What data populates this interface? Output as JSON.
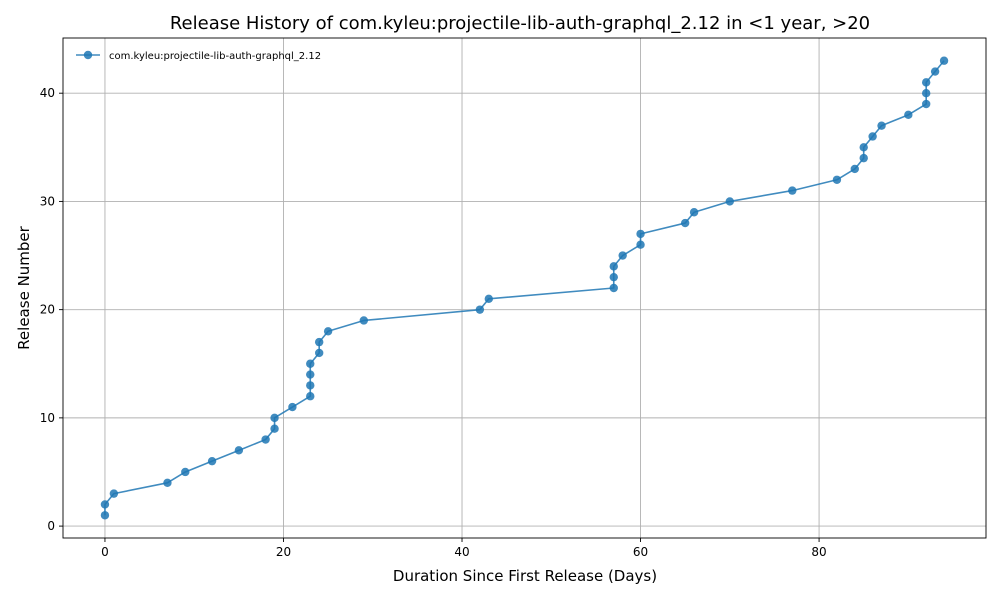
{
  "chart_data": {
    "type": "line",
    "title": "Release History of com.kyleu:projectile-lib-auth-graphql_2.12 in <1 year, >20",
    "xlabel": "Duration Since First Release (Days)",
    "ylabel": "Release Number",
    "xlim": [
      -4.7,
      98.7
    ],
    "ylim": [
      -1.1,
      45.1
    ],
    "xticks": [
      0,
      20,
      40,
      60,
      80
    ],
    "yticks": [
      0,
      10,
      20,
      30,
      40
    ],
    "grid": true,
    "legend_position": "top-left",
    "series": [
      {
        "name": "com.kyleu:projectile-lib-auth-graphql_2.12",
        "color": "#1f77b4",
        "marker": "circle",
        "x": [
          0,
          0,
          1,
          7,
          9,
          12,
          15,
          18,
          19,
          19,
          21,
          23,
          23,
          23,
          23,
          24,
          24,
          25,
          29,
          42,
          43,
          57,
          57,
          57,
          58,
          60,
          60,
          65,
          66,
          70,
          77,
          82,
          84,
          85,
          85,
          86,
          87,
          90,
          92,
          92,
          92,
          93,
          94
        ],
        "y": [
          1,
          2,
          3,
          4,
          5,
          6,
          7,
          8,
          9,
          10,
          11,
          12,
          13,
          14,
          15,
          16,
          17,
          18,
          19,
          20,
          21,
          22,
          23,
          24,
          25,
          26,
          27,
          28,
          29,
          30,
          31,
          32,
          33,
          34,
          35,
          36,
          37,
          38,
          39,
          40,
          41,
          42,
          43
        ]
      }
    ]
  }
}
